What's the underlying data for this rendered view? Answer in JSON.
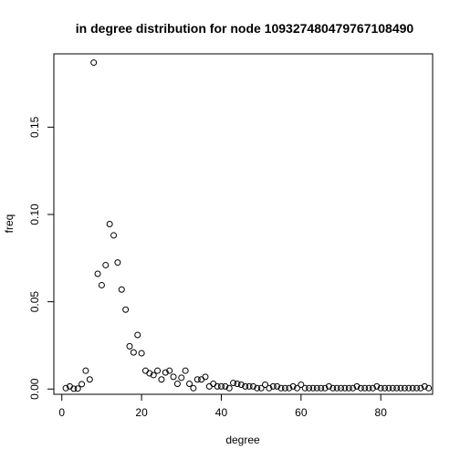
{
  "chart_data": {
    "type": "scatter",
    "title": "in degree distribution for node 109327480479767108490",
    "xlabel": "degree",
    "ylabel": "freq",
    "xlim": [
      -2,
      93
    ],
    "ylim": [
      -0.003,
      0.192
    ],
    "xticks": [
      0,
      20,
      40,
      60,
      80
    ],
    "yticks": [
      0.0,
      0.05,
      0.1,
      0.15
    ],
    "ytick_labels": [
      "0.00",
      "0.05",
      "0.10",
      "0.15"
    ],
    "grid": false,
    "legend": "none",
    "x": [
      1,
      2,
      3,
      4,
      5,
      6,
      7,
      8,
      9,
      10,
      11,
      12,
      13,
      14,
      15,
      16,
      17,
      18,
      19,
      20,
      21,
      22,
      23,
      24,
      25,
      26,
      27,
      28,
      29,
      30,
      31,
      32,
      33,
      34,
      35,
      36,
      37,
      38,
      39,
      40,
      41,
      42,
      43,
      44,
      45,
      46,
      47,
      48,
      49,
      50,
      51,
      52,
      53,
      54,
      55,
      56,
      57,
      58,
      59,
      60,
      61,
      62,
      63,
      64,
      65,
      66,
      67,
      68,
      69,
      70,
      71,
      72,
      73,
      74,
      75,
      76,
      77,
      78,
      79,
      80,
      81,
      82,
      83,
      84,
      85,
      86,
      87,
      88,
      89,
      90,
      91,
      92
    ],
    "y": [
      0.0005,
      0.0015,
      0.0002,
      0.0003,
      0.0028,
      0.0105,
      0.0055,
      0.187,
      0.066,
      0.0595,
      0.071,
      0.0945,
      0.088,
      0.0725,
      0.057,
      0.0455,
      0.0245,
      0.021,
      0.031,
      0.0205,
      0.0105,
      0.009,
      0.008,
      0.0105,
      0.0055,
      0.0095,
      0.0105,
      0.007,
      0.003,
      0.0065,
      0.0105,
      0.003,
      0.0005,
      0.0055,
      0.0055,
      0.007,
      0.0015,
      0.003,
      0.0015,
      0.0015,
      0.0015,
      0.0005,
      0.0035,
      0.003,
      0.0025,
      0.0015,
      0.0015,
      0.0015,
      0.0005,
      0.0005,
      0.0025,
      0.0005,
      0.0015,
      0.0015,
      0.0005,
      0.0005,
      0.0005,
      0.0015,
      0.0005,
      0.0025,
      0.0005,
      0.0005,
      0.0005,
      0.0005,
      0.0005,
      0.0005,
      0.0015,
      0.0005,
      0.0005,
      0.0005,
      0.0005,
      0.0005,
      0.0005,
      0.0015,
      0.0005,
      0.0005,
      0.0005,
      0.0005,
      0.0015,
      0.0005,
      0.0005,
      0.0005,
      0.0005,
      0.0005,
      0.0005,
      0.0005,
      0.0005,
      0.0005,
      0.0005,
      0.0005,
      0.0015,
      0.0005
    ]
  }
}
